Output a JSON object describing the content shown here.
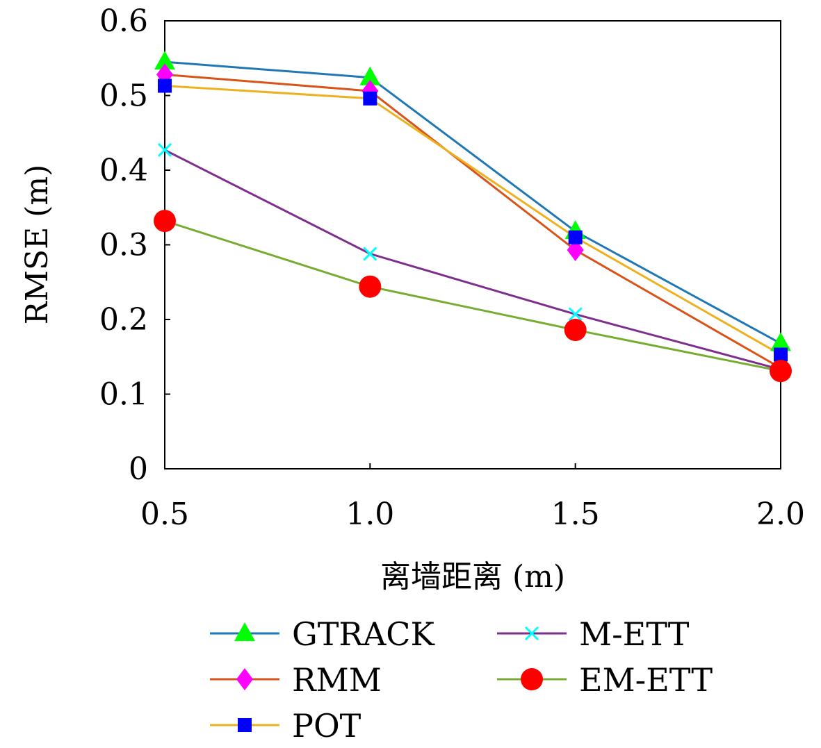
{
  "chart_data": {
    "type": "line",
    "x": [
      0.5,
      1.0,
      1.5,
      2.0
    ],
    "x_tick_labels": [
      "0.5",
      "1.0",
      "1.5",
      "2.0"
    ],
    "xlabel": "离墙距离 (m)",
    "ylabel": "RMSE (m)",
    "ylim": [
      0,
      0.6
    ],
    "y_ticks": [
      0,
      0.1,
      0.2,
      0.3,
      0.4,
      0.5,
      0.6
    ],
    "y_tick_labels": [
      "0",
      "0.1",
      "0.2",
      "0.3",
      "0.4",
      "0.5",
      "0.6"
    ],
    "grid": false,
    "legend_position": "bottom",
    "series": [
      {
        "name": "GTRACK",
        "values": [
          0.545,
          0.524,
          0.318,
          0.168
        ],
        "line_color": "#1f77b4",
        "marker": "triangle",
        "marker_color": "#00ff00"
      },
      {
        "name": "RMM",
        "values": [
          0.528,
          0.506,
          0.293,
          0.135
        ],
        "line_color": "#d95319",
        "marker": "diamond",
        "marker_color": "#ff00ff"
      },
      {
        "name": "POT",
        "values": [
          0.513,
          0.496,
          0.31,
          0.153
        ],
        "line_color": "#edb120",
        "marker": "square",
        "marker_color": "#0000ff"
      },
      {
        "name": "M-ETT",
        "values": [
          0.427,
          0.288,
          0.207,
          0.133
        ],
        "line_color": "#7e2f8e",
        "marker": "x",
        "marker_color": "#00ffff"
      },
      {
        "name": "EM-ETT",
        "values": [
          0.332,
          0.244,
          0.186,
          0.131
        ],
        "line_color": "#77ac30",
        "marker": "circle",
        "marker_color": "#ff0000"
      }
    ]
  }
}
